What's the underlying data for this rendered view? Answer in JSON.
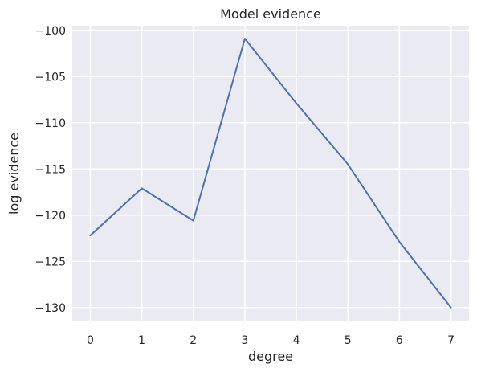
{
  "chart_data": {
    "type": "line",
    "title": "Model evidence",
    "xlabel": "degree",
    "ylabel": "log evidence",
    "x": [
      0,
      1,
      2,
      3,
      4,
      5,
      6,
      7
    ],
    "series": [
      {
        "values": [
          -122.2,
          -117.1,
          -120.6,
          -100.9,
          -107.9,
          -114.5,
          -122.9,
          -130.0
        ]
      }
    ],
    "xlim": [
      -0.35,
      7.35
    ],
    "ylim": [
      -131.5,
      -99.5
    ],
    "xticks": [
      0,
      1,
      2,
      3,
      4,
      5,
      6,
      7
    ],
    "xtick_labels": [
      "0",
      "1",
      "2",
      "3",
      "4",
      "5",
      "6",
      "7"
    ],
    "yticks": [
      -100,
      -105,
      -110,
      -115,
      -120,
      -125,
      -130
    ],
    "ytick_labels": [
      "−100",
      "−105",
      "−110",
      "−115",
      "−120",
      "−125",
      "−130"
    ],
    "grid": true,
    "colors": {
      "background": "#eaeaf2",
      "grid": "#ffffff",
      "line": "#4c72b0",
      "text": "#262626"
    }
  }
}
